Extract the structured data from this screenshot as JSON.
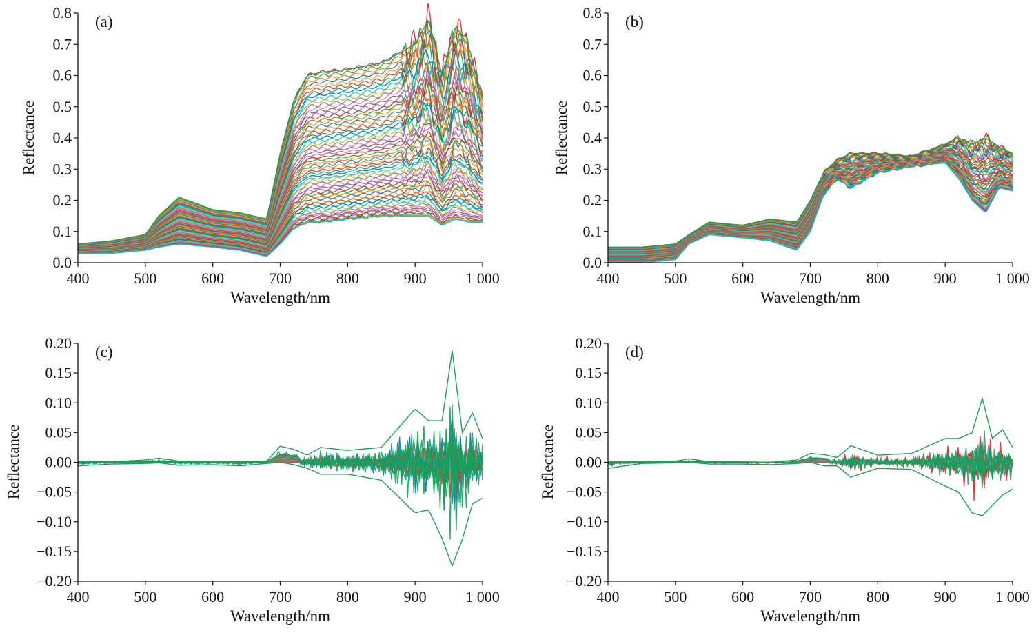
{
  "chart_data": [
    {
      "id": "a",
      "type": "line",
      "panel_label": "(a)",
      "xlabel": "Wavelength/nm",
      "ylabel": "Reflectance",
      "xlim": [
        400,
        1000
      ],
      "ylim": [
        0.0,
        0.8
      ],
      "xticks": [
        400,
        500,
        600,
        700,
        800,
        900,
        1000
      ],
      "xtick_labels": [
        "400",
        "500",
        "600",
        "700",
        "800",
        "900",
        "1 000"
      ],
      "yticks": [
        0.0,
        0.1,
        0.2,
        0.3,
        0.4,
        0.5,
        0.6,
        0.7,
        0.8
      ],
      "ytick_labels": [
        "0.0",
        "0.1",
        "0.2",
        "0.3",
        "0.4",
        "0.5",
        "0.6",
        "0.7",
        "0.8"
      ],
      "grid": false,
      "series_count_approx": 150,
      "x": [
        400,
        450,
        500,
        520,
        550,
        600,
        640,
        680,
        700,
        720,
        740,
        760,
        800,
        850,
        900,
        920,
        940,
        960,
        980,
        1000
      ],
      "envelope": {
        "max": [
          0.06,
          0.07,
          0.09,
          0.15,
          0.21,
          0.17,
          0.16,
          0.14,
          0.35,
          0.52,
          0.6,
          0.61,
          0.62,
          0.64,
          0.7,
          0.78,
          0.6,
          0.76,
          0.69,
          0.52
        ],
        "median": [
          0.04,
          0.05,
          0.06,
          0.09,
          0.11,
          0.1,
          0.09,
          0.07,
          0.19,
          0.28,
          0.31,
          0.3,
          0.32,
          0.33,
          0.33,
          0.35,
          0.3,
          0.35,
          0.3,
          0.28
        ],
        "min": [
          0.03,
          0.03,
          0.04,
          0.05,
          0.06,
          0.05,
          0.04,
          0.02,
          0.06,
          0.11,
          0.13,
          0.13,
          0.14,
          0.15,
          0.15,
          0.15,
          0.12,
          0.14,
          0.13,
          0.13
        ]
      }
    },
    {
      "id": "b",
      "type": "line",
      "panel_label": "(b)",
      "xlabel": "Wavelength/nm",
      "ylabel": "Reflectance",
      "xlim": [
        400,
        1000
      ],
      "ylim": [
        0.0,
        0.8
      ],
      "xticks": [
        400,
        500,
        600,
        700,
        800,
        900,
        1000
      ],
      "xtick_labels": [
        "400",
        "500",
        "600",
        "700",
        "800",
        "900",
        "1 000"
      ],
      "yticks": [
        0.0,
        0.1,
        0.2,
        0.3,
        0.4,
        0.5,
        0.6,
        0.7,
        0.8
      ],
      "ytick_labels": [
        "0.0",
        "0.1",
        "0.2",
        "0.3",
        "0.4",
        "0.5",
        "0.6",
        "0.7",
        "0.8"
      ],
      "grid": false,
      "series_count_approx": 150,
      "x": [
        400,
        450,
        500,
        520,
        550,
        600,
        640,
        680,
        700,
        720,
        740,
        760,
        800,
        850,
        900,
        920,
        940,
        960,
        980,
        1000
      ],
      "envelope": {
        "max": [
          0.05,
          0.05,
          0.06,
          0.09,
          0.13,
          0.12,
          0.14,
          0.13,
          0.2,
          0.29,
          0.33,
          0.35,
          0.35,
          0.34,
          0.38,
          0.4,
          0.38,
          0.4,
          0.37,
          0.35
        ],
        "median": [
          0.03,
          0.03,
          0.04,
          0.07,
          0.1,
          0.1,
          0.1,
          0.08,
          0.15,
          0.26,
          0.3,
          0.31,
          0.32,
          0.33,
          0.33,
          0.33,
          0.3,
          0.31,
          0.31,
          0.3
        ],
        "min": [
          0.0,
          0.0,
          0.01,
          0.06,
          0.09,
          0.08,
          0.07,
          0.04,
          0.1,
          0.22,
          0.27,
          0.24,
          0.29,
          0.31,
          0.32,
          0.27,
          0.2,
          0.16,
          0.24,
          0.23
        ]
      }
    },
    {
      "id": "c",
      "type": "line",
      "panel_label": "(c)",
      "xlabel": "Wavelength/nm",
      "ylabel": "Reflectance",
      "xlim": [
        400,
        1000
      ],
      "ylim": [
        -0.2,
        0.2
      ],
      "xticks": [
        400,
        500,
        600,
        700,
        800,
        900,
        1000
      ],
      "xtick_labels": [
        "400",
        "500",
        "600",
        "700",
        "800",
        "900",
        "1 000"
      ],
      "yticks": [
        0.2,
        0.15,
        0.1,
        0.05,
        0.0,
        -0.05,
        -0.1,
        -0.15,
        -0.2
      ],
      "ytick_labels": [
        "0.20",
        "0.15",
        "0.10",
        "0.05",
        "0.00",
        "−0.05",
        "−0.10",
        "−0.15",
        "−0.20"
      ],
      "grid": false,
      "series_count_approx": 150,
      "x": [
        400,
        450,
        500,
        520,
        550,
        600,
        640,
        680,
        700,
        720,
        740,
        760,
        800,
        850,
        900,
        920,
        940,
        955,
        970,
        985,
        1000
      ],
      "envelope": {
        "max": [
          0.002,
          0.001,
          0.004,
          0.007,
          0.002,
          0.001,
          0.001,
          0.002,
          0.027,
          0.022,
          0.012,
          0.025,
          0.02,
          0.025,
          0.09,
          0.07,
          0.07,
          0.188,
          0.05,
          0.083,
          0.04
        ],
        "min": [
          -0.006,
          -0.003,
          -0.002,
          -0.001,
          -0.005,
          -0.004,
          -0.006,
          -0.002,
          0.0,
          -0.004,
          -0.01,
          -0.02,
          -0.02,
          -0.03,
          -0.085,
          -0.08,
          -0.128,
          -0.174,
          -0.13,
          -0.07,
          -0.06
        ]
      }
    },
    {
      "id": "d",
      "type": "line",
      "panel_label": "(d)",
      "xlabel": "Wavelength/nm",
      "ylabel": "Reflectance",
      "xlim": [
        400,
        1000
      ],
      "ylim": [
        -0.2,
        0.2
      ],
      "xticks": [
        400,
        500,
        600,
        700,
        800,
        900,
        1000
      ],
      "xtick_labels": [
        "400",
        "500",
        "600",
        "700",
        "800",
        "900",
        "1 000"
      ],
      "yticks": [
        0.2,
        0.15,
        0.1,
        0.05,
        0.0,
        -0.05,
        -0.1,
        -0.15,
        -0.2
      ],
      "ytick_labels": [
        "0.20",
        "0.15",
        "0.10",
        "0.05",
        "0.00",
        "−0.05",
        "−0.10",
        "−0.15",
        "−0.20"
      ],
      "grid": false,
      "series_count_approx": 150,
      "x": [
        400,
        450,
        500,
        520,
        550,
        600,
        640,
        680,
        700,
        720,
        740,
        760,
        800,
        850,
        900,
        920,
        940,
        955,
        970,
        985,
        1000
      ],
      "envelope": {
        "max": [
          0.001,
          0.001,
          0.002,
          0.006,
          0.001,
          0.001,
          0.0,
          0.004,
          0.015,
          0.013,
          0.008,
          0.028,
          0.012,
          0.015,
          0.04,
          0.04,
          0.05,
          0.108,
          0.04,
          0.055,
          0.025
        ],
        "min": [
          -0.01,
          -0.002,
          -0.001,
          0.0,
          -0.003,
          -0.003,
          -0.004,
          -0.002,
          0.0,
          -0.006,
          -0.006,
          -0.025,
          -0.01,
          -0.012,
          -0.04,
          -0.05,
          -0.085,
          -0.09,
          -0.072,
          -0.055,
          -0.045
        ]
      }
    }
  ],
  "colors": {
    "palette": [
      "#1f77b4",
      "#ff7f0e",
      "#2ca02c",
      "#d62728",
      "#9467bd",
      "#8c564b",
      "#e377c2",
      "#7f7f7f",
      "#bcbd22",
      "#17becf",
      "#0072bd",
      "#00a050",
      "#e03030",
      "#f0a020"
    ],
    "highlight_green": "#1a9e5a",
    "highlight_gray": "#6b6b6b",
    "axis": "#111111"
  }
}
